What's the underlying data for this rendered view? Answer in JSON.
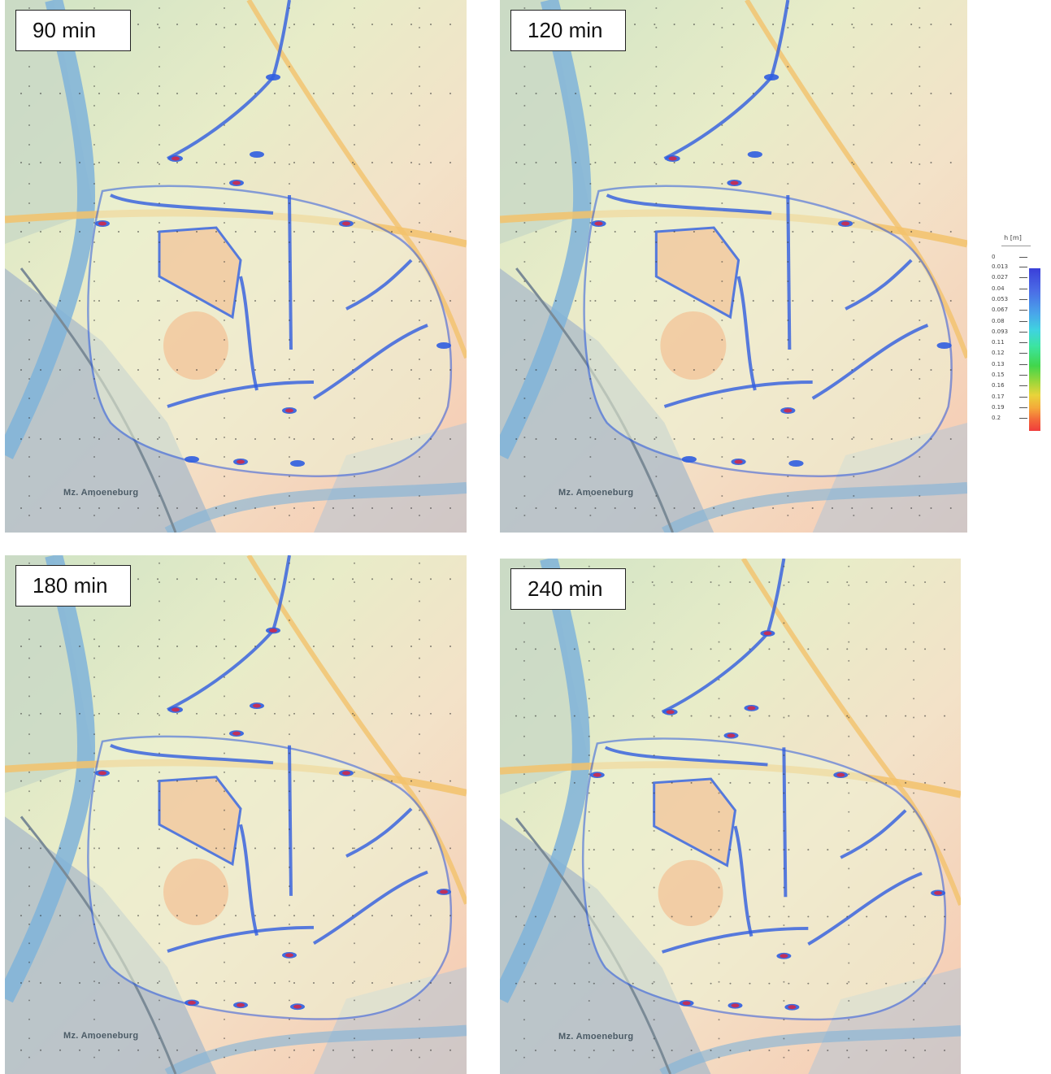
{
  "panels": [
    {
      "label": "90 min",
      "place": "Mz. Amoeneburg"
    },
    {
      "label": "120 min",
      "place": "Mz. Amoeneburg"
    },
    {
      "label": "180 min",
      "place": "Mz. Amoeneburg"
    },
    {
      "label": "240 min",
      "place": "Mz. Amoeneburg"
    }
  ],
  "legend": {
    "unit": "h [m]",
    "ticks": [
      "0",
      "0.013",
      "0.027",
      "0.04",
      "0.053",
      "0.067",
      "0.08",
      "0.093",
      "0.11",
      "0.12",
      "0.13",
      "0.15",
      "0.16",
      "0.17",
      "0.19",
      "0.2"
    ],
    "colors": {
      "low": "#3a3fd8",
      "high": "#f03c3c"
    }
  },
  "colors": {
    "water": "#2f5de0",
    "deep": "#c0305a",
    "river": "#7fb3d9"
  }
}
